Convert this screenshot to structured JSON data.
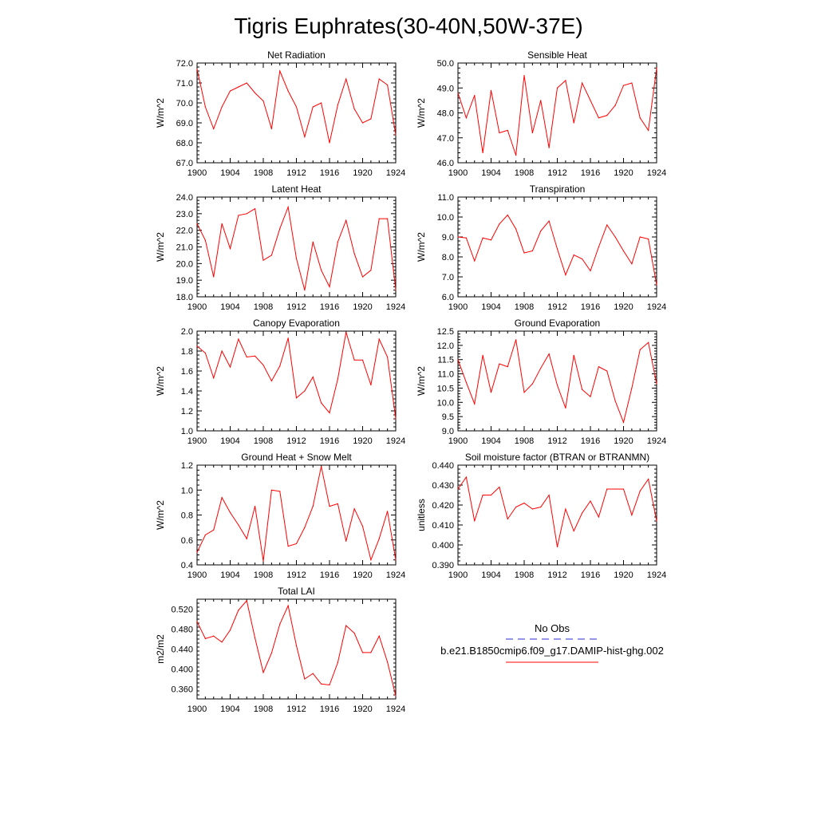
{
  "figure": {
    "title": "Tigris Euphrates(30-40N,50W-37E)"
  },
  "legend": {
    "entries": [
      {
        "label": "No Obs",
        "color": "#2b2bd6",
        "style": "dashed"
      },
      {
        "label": "b.e21.B1850cmip6.f09_g17.DAMIP-hist-ghg.002",
        "color": "#ff0000",
        "style": "solid"
      }
    ]
  },
  "chart_data": [
    {
      "type": "line",
      "title": "Net Radiation",
      "ylabel": "W/m^2",
      "xlim": [
        1900,
        1924
      ],
      "ylim": [
        67.0,
        72.0
      ],
      "xticks": [
        1900,
        1904,
        1908,
        1912,
        1916,
        1920,
        1924
      ],
      "yticks": [
        "67.0",
        "68.0",
        "69.0",
        "70.0",
        "71.0",
        "72.0"
      ],
      "series": [
        {
          "color": "#ff0000",
          "x": [
            1900,
            1901,
            1902,
            1903,
            1904,
            1905,
            1906,
            1907,
            1908,
            1909,
            1910,
            1911,
            1912,
            1913,
            1914,
            1915,
            1916,
            1917,
            1918,
            1919,
            1920,
            1921,
            1922,
            1923,
            1924
          ],
          "values": [
            71.7,
            69.8,
            68.7,
            69.8,
            70.6,
            70.8,
            71.0,
            70.5,
            70.1,
            68.7,
            71.6,
            70.6,
            69.8,
            68.3,
            69.8,
            70.0,
            68.0,
            69.9,
            71.2,
            69.7,
            69.0,
            69.2,
            71.2,
            70.9,
            68.4
          ]
        }
      ]
    },
    {
      "type": "line",
      "title": "Sensible Heat",
      "ylabel": "W/m^2",
      "xlim": [
        1900,
        1924
      ],
      "ylim": [
        46.0,
        50.0
      ],
      "xticks": [
        1900,
        1904,
        1908,
        1912,
        1916,
        1920,
        1924
      ],
      "yticks": [
        "46.0",
        "47.0",
        "48.0",
        "49.0",
        "50.0"
      ],
      "series": [
        {
          "color": "#ff0000",
          "x": [
            1900,
            1901,
            1902,
            1903,
            1904,
            1905,
            1906,
            1907,
            1908,
            1909,
            1910,
            1911,
            1912,
            1913,
            1914,
            1915,
            1916,
            1917,
            1918,
            1919,
            1920,
            1921,
            1922,
            1923,
            1924
          ],
          "values": [
            48.8,
            47.8,
            48.7,
            46.4,
            48.9,
            47.2,
            47.3,
            46.3,
            49.5,
            47.2,
            48.5,
            46.6,
            49.0,
            49.3,
            47.6,
            49.2,
            48.5,
            47.8,
            47.9,
            48.3,
            49.1,
            49.2,
            47.8,
            47.3,
            49.8
          ]
        }
      ]
    },
    {
      "type": "line",
      "title": "Latent Heat",
      "ylabel": "W/m^2",
      "xlim": [
        1900,
        1924
      ],
      "ylim": [
        18.0,
        24.0
      ],
      "xticks": [
        1900,
        1904,
        1908,
        1912,
        1916,
        1920,
        1924
      ],
      "yticks": [
        "18.0",
        "19.0",
        "20.0",
        "21.0",
        "22.0",
        "23.0",
        "24.0"
      ],
      "series": [
        {
          "color": "#ff0000",
          "x": [
            1900,
            1901,
            1902,
            1903,
            1904,
            1905,
            1906,
            1907,
            1908,
            1909,
            1910,
            1911,
            1912,
            1913,
            1914,
            1915,
            1916,
            1917,
            1918,
            1919,
            1920,
            1921,
            1922,
            1923,
            1924
          ],
          "values": [
            22.4,
            21.4,
            19.2,
            22.4,
            20.9,
            22.9,
            23.0,
            23.3,
            20.2,
            20.5,
            22.1,
            23.4,
            20.3,
            18.4,
            21.3,
            19.6,
            18.6,
            21.3,
            22.6,
            20.6,
            19.2,
            19.6,
            22.7,
            22.7,
            18.4
          ]
        }
      ]
    },
    {
      "type": "line",
      "title": "Transpiration",
      "ylabel": "W/m^2",
      "xlim": [
        1900,
        1924
      ],
      "ylim": [
        6.0,
        11.0
      ],
      "xticks": [
        1900,
        1904,
        1908,
        1912,
        1916,
        1920,
        1924
      ],
      "yticks": [
        "6.0",
        "7.0",
        "8.0",
        "9.0",
        "10.0",
        "11.0"
      ],
      "series": [
        {
          "color": "#ff0000",
          "x": [
            1900,
            1901,
            1902,
            1903,
            1904,
            1905,
            1906,
            1907,
            1908,
            1909,
            1910,
            1911,
            1912,
            1913,
            1914,
            1915,
            1916,
            1917,
            1918,
            1919,
            1920,
            1921,
            1922,
            1923,
            1924
          ],
          "values": [
            9.0,
            8.95,
            7.8,
            8.95,
            8.85,
            9.65,
            10.1,
            9.4,
            8.2,
            8.3,
            9.3,
            9.8,
            8.4,
            7.1,
            8.1,
            7.9,
            7.3,
            8.5,
            9.6,
            9.0,
            8.3,
            7.65,
            9.0,
            8.9,
            6.6
          ]
        }
      ]
    },
    {
      "type": "line",
      "title": "Canopy Evaporation",
      "ylabel": "W/m^2",
      "xlim": [
        1900,
        1924
      ],
      "ylim": [
        1.0,
        2.0
      ],
      "xticks": [
        1900,
        1904,
        1908,
        1912,
        1916,
        1920,
        1924
      ],
      "yticks": [
        "1.0",
        "1.2",
        "1.4",
        "1.6",
        "1.8",
        "2.0"
      ],
      "series": [
        {
          "color": "#ff0000",
          "x": [
            1900,
            1901,
            1902,
            1903,
            1904,
            1905,
            1906,
            1907,
            1908,
            1909,
            1910,
            1911,
            1912,
            1913,
            1914,
            1915,
            1916,
            1917,
            1918,
            1919,
            1920,
            1921,
            1922,
            1923,
            1924
          ],
          "values": [
            1.85,
            1.78,
            1.53,
            1.8,
            1.64,
            1.92,
            1.74,
            1.75,
            1.66,
            1.5,
            1.65,
            1.93,
            1.33,
            1.4,
            1.54,
            1.28,
            1.18,
            1.52,
            1.99,
            1.71,
            1.71,
            1.46,
            1.92,
            1.74,
            1.12
          ]
        }
      ]
    },
    {
      "type": "line",
      "title": "Ground Evaporation",
      "ylabel": "W/m^2",
      "xlim": [
        1900,
        1924
      ],
      "ylim": [
        9.0,
        12.5
      ],
      "xticks": [
        1900,
        1904,
        1908,
        1912,
        1916,
        1920,
        1924
      ],
      "yticks": [
        "9.0",
        "9.5",
        "10.0",
        "10.5",
        "11.0",
        "11.5",
        "12.0",
        "12.5"
      ],
      "series": [
        {
          "color": "#ff0000",
          "x": [
            1900,
            1901,
            1902,
            1903,
            1904,
            1905,
            1906,
            1907,
            1908,
            1909,
            1910,
            1911,
            1912,
            1913,
            1914,
            1915,
            1916,
            1917,
            1918,
            1919,
            1920,
            1921,
            1922,
            1923,
            1924
          ],
          "values": [
            11.5,
            10.7,
            9.95,
            11.65,
            10.35,
            11.35,
            11.25,
            12.2,
            10.35,
            10.65,
            11.2,
            11.7,
            10.6,
            9.8,
            11.65,
            10.45,
            10.2,
            11.25,
            11.1,
            10.05,
            9.3,
            10.5,
            11.85,
            12.1,
            10.65
          ]
        }
      ]
    },
    {
      "type": "line",
      "title": "Ground Heat + Snow Melt",
      "ylabel": "W/m^2",
      "xlim": [
        1900,
        1924
      ],
      "ylim": [
        0.4,
        1.2
      ],
      "xticks": [
        1900,
        1904,
        1908,
        1912,
        1916,
        1920,
        1924
      ],
      "yticks": [
        "0.4",
        "0.6",
        "0.8",
        "1.0",
        "1.2"
      ],
      "series": [
        {
          "color": "#ff0000",
          "x": [
            1900,
            1901,
            1902,
            1903,
            1904,
            1905,
            1906,
            1907,
            1908,
            1909,
            1910,
            1911,
            1912,
            1913,
            1914,
            1915,
            1916,
            1917,
            1918,
            1919,
            1920,
            1921,
            1922,
            1923,
            1924
          ],
          "values": [
            0.5,
            0.64,
            0.68,
            0.94,
            0.82,
            0.72,
            0.61,
            0.87,
            0.43,
            1.0,
            0.99,
            0.55,
            0.57,
            0.7,
            0.87,
            1.19,
            0.87,
            0.89,
            0.59,
            0.85,
            0.71,
            0.44,
            0.61,
            0.83,
            0.44
          ]
        }
      ]
    },
    {
      "type": "line",
      "title": "Soil moisture factor (BTRAN or BTRANMN)",
      "ylabel": "unitless",
      "xlim": [
        1900,
        1924
      ],
      "ylim": [
        0.39,
        0.44
      ],
      "xticks": [
        1900,
        1904,
        1908,
        1912,
        1916,
        1920,
        1924
      ],
      "yticks": [
        "0.390",
        "0.400",
        "0.410",
        "0.420",
        "0.430",
        "0.440"
      ],
      "series": [
        {
          "color": "#ff0000",
          "x": [
            1900,
            1901,
            1902,
            1903,
            1904,
            1905,
            1906,
            1907,
            1908,
            1909,
            1910,
            1911,
            1912,
            1913,
            1914,
            1915,
            1916,
            1917,
            1918,
            1919,
            1920,
            1921,
            1922,
            1923,
            1924
          ],
          "values": [
            0.428,
            0.434,
            0.412,
            0.425,
            0.425,
            0.429,
            0.413,
            0.419,
            0.421,
            0.418,
            0.419,
            0.425,
            0.399,
            0.418,
            0.407,
            0.416,
            0.422,
            0.414,
            0.428,
            0.428,
            0.428,
            0.415,
            0.427,
            0.433,
            0.412
          ]
        }
      ]
    },
    {
      "type": "line",
      "title": "Total LAI",
      "ylabel": "m2/m2",
      "xlim": [
        1900,
        1924
      ],
      "ylim": [
        0.34,
        0.54
      ],
      "xticks": [
        1900,
        1904,
        1908,
        1912,
        1916,
        1920,
        1924
      ],
      "yticks": [
        "0.360",
        "0.400",
        "0.440",
        "0.480",
        "0.520"
      ],
      "series": [
        {
          "color": "#ff0000",
          "x": [
            1900,
            1901,
            1902,
            1903,
            1904,
            1905,
            1906,
            1907,
            1908,
            1909,
            1910,
            1911,
            1912,
            1913,
            1914,
            1915,
            1916,
            1917,
            1918,
            1919,
            1920,
            1921,
            1922,
            1923,
            1924
          ],
          "values": [
            0.495,
            0.461,
            0.466,
            0.454,
            0.478,
            0.518,
            0.537,
            0.462,
            0.393,
            0.432,
            0.49,
            0.527,
            0.447,
            0.38,
            0.391,
            0.37,
            0.368,
            0.413,
            0.487,
            0.472,
            0.433,
            0.433,
            0.466,
            0.414,
            0.346
          ]
        }
      ]
    }
  ]
}
